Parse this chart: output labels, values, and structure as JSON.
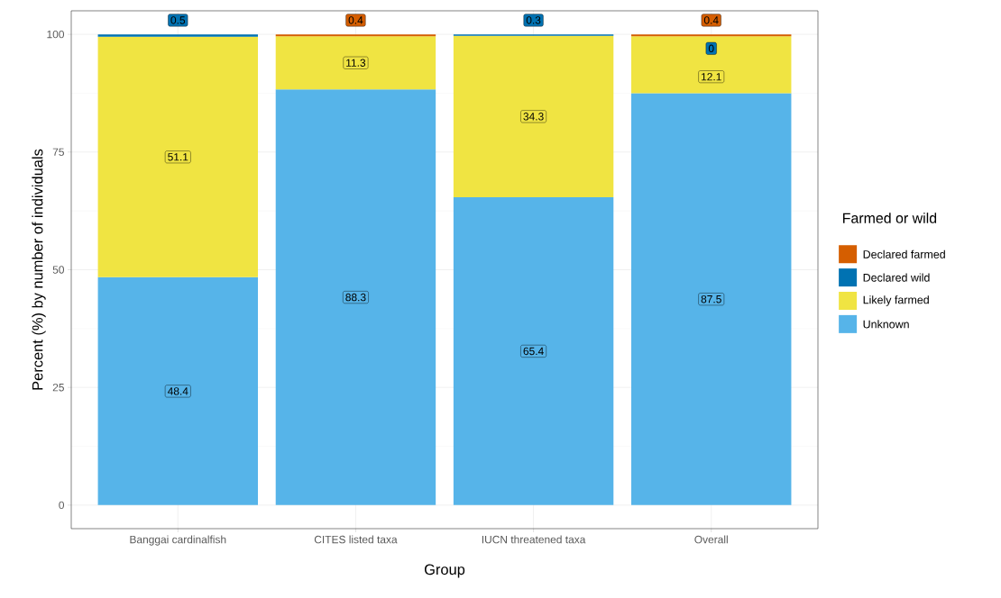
{
  "chart_data": {
    "type": "bar",
    "stacked": true,
    "xlabel": "Group",
    "ylabel": "Percent (%) by number of individuals",
    "legend_title": "Farmed or wild",
    "legend": "right",
    "grid": true,
    "data_labels": true,
    "categories": [
      "Banggai cardinalfish",
      "CITES listed taxa",
      "IUCN threatened taxa",
      "Overall"
    ],
    "ylim": [
      -5,
      105
    ],
    "yticks": [
      0,
      25,
      50,
      75,
      100
    ],
    "series": [
      {
        "name": "Unknown",
        "color": "#56b4e9",
        "values": [
          48.4,
          88.3,
          65.4,
          87.5
        ]
      },
      {
        "name": "Likely farmed",
        "color": "#f0e442",
        "values": [
          51.1,
          11.3,
          34.3,
          12.1
        ]
      },
      {
        "name": "Declared wild",
        "color": "#0072b2",
        "values": [
          0.5,
          null,
          0.3,
          0
        ]
      },
      {
        "name": "Declared farmed",
        "color": "#d55e00",
        "values": [
          null,
          0.4,
          null,
          0.4
        ]
      }
    ]
  }
}
